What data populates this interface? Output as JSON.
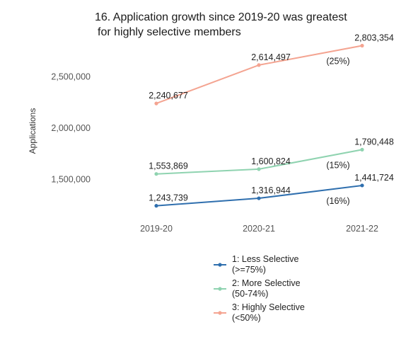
{
  "chart_data": {
    "type": "line",
    "title_lines": [
      "16. Application growth since 2019-20 was greatest",
      "for highly selective members"
    ],
    "ylabel": "Applications",
    "categories": [
      "2019-20",
      "2020-21",
      "2021-22"
    ],
    "y_ticks": [
      "1,500,000",
      "2,000,000",
      "2,500,000"
    ],
    "y_tick_values": [
      1500000,
      2000000,
      2500000
    ],
    "series": [
      {
        "name": "1: Less Selective (>=75%)",
        "legend_lines": [
          "1: Less Selective",
          "(>=75%)"
        ],
        "color": "#2f6fae",
        "values": [
          1243739,
          1316944,
          1441724
        ],
        "labels": [
          "1,243,739",
          "1,316,944",
          "1,441,724"
        ],
        "end_note": "(16%)"
      },
      {
        "name": "2: More Selective (50-74%)",
        "legend_lines": [
          "2: More Selective",
          "(50-74%)"
        ],
        "color": "#8fd3b0",
        "values": [
          1553869,
          1600824,
          1790448
        ],
        "labels": [
          "1,553,869",
          "1,600,824",
          "1,790,448"
        ],
        "end_note": "(15%)"
      },
      {
        "name": "3: Highly Selective (<50%)",
        "legend_lines": [
          "3: Highly Selective",
          "(<50%)"
        ],
        "color": "#f4a491",
        "values": [
          2240677,
          2614497,
          2803354
        ],
        "labels": [
          "2,240,677",
          "2,614,497",
          "2,803,354"
        ],
        "end_note": "(25%)"
      }
    ],
    "grid": false,
    "legend_position": "bottom-center"
  }
}
